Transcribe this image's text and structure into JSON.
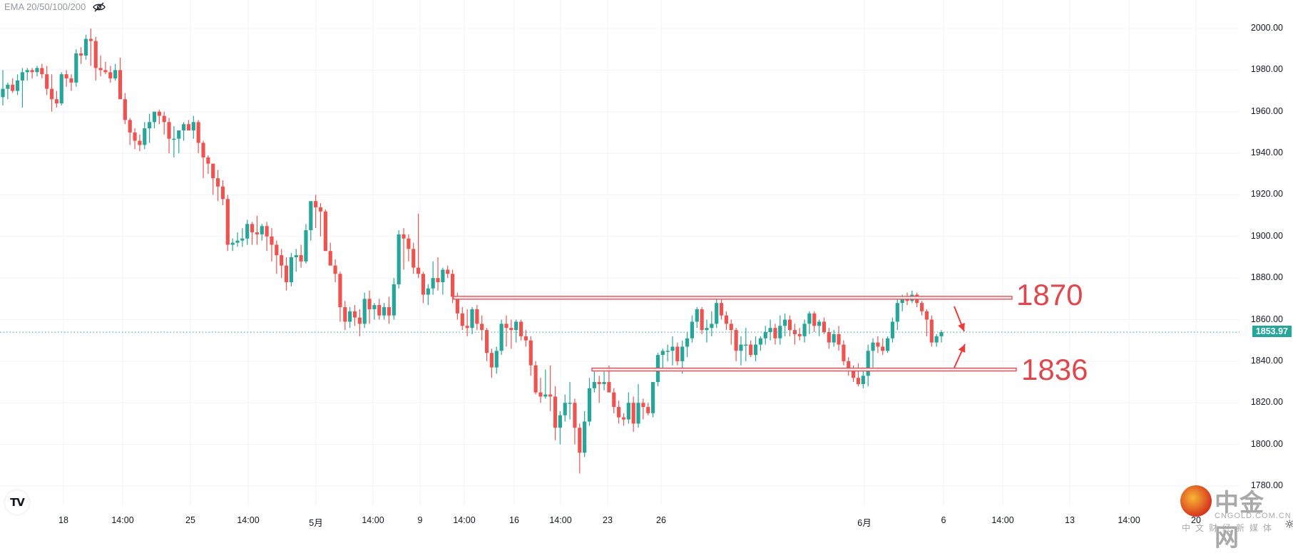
{
  "legend": {
    "indicator": "EMA 20/50/100/200",
    "visibility_icon": "eye-slash-icon"
  },
  "colors": {
    "up": "#26a69a",
    "down": "#ef5350",
    "annotation": "#e0474c",
    "grid": "#f0f3fa",
    "last_price_bg": "#26a69a"
  },
  "price_axis": {
    "labels": [
      "2000.00",
      "1980.00",
      "1960.00",
      "1940.00",
      "1920.00",
      "1900.00",
      "1880.00",
      "1860.00",
      "1840.00",
      "1820.00",
      "1800.00",
      "1780.00"
    ],
    "last_price": "1853.97"
  },
  "time_axis": {
    "labels": [
      "18",
      "14:00",
      "25",
      "14:00",
      "5月",
      "14:00",
      "9",
      "14:00",
      "16",
      "14:00",
      "23",
      "26",
      "6月",
      "6",
      "14:00",
      "13",
      "14:00",
      "20"
    ]
  },
  "annotations": {
    "resistance_label": "1870",
    "support_label": "1836"
  },
  "watermark": {
    "name": "中金网",
    "url": "CNGOLD.COM.CN",
    "tagline": "中文财经新媒体"
  },
  "logo": {
    "text": "TV"
  },
  "chart_data": {
    "type": "candlestick",
    "title": "",
    "indicator_legend": "EMA 20/50/100/200",
    "xlabel": "",
    "ylabel": "",
    "ylim": [
      1775,
      2005
    ],
    "y_ticks": [
      2000,
      1980,
      1960,
      1940,
      1920,
      1900,
      1880,
      1860,
      1840,
      1820,
      1800,
      1780
    ],
    "x_ticks": [
      "18",
      "14:00",
      "25",
      "14:00",
      "5月",
      "14:00",
      "9",
      "14:00",
      "16",
      "14:00",
      "23",
      "26",
      "6月",
      "6",
      "14:00",
      "13",
      "14:00",
      "20"
    ],
    "last_price": 1853.97,
    "horizontal_levels": [
      {
        "label": "1870",
        "price": 1870.5
      },
      {
        "label": "1836",
        "price": 1836
      }
    ],
    "candles": [
      [
        1967,
        1980,
        1963,
        1971
      ],
      [
        1971,
        1974,
        1966,
        1973
      ],
      [
        1973,
        1976,
        1969,
        1970
      ],
      [
        1970,
        1978,
        1968,
        1975
      ],
      [
        1975,
        1981,
        1962,
        1979
      ],
      [
        1979,
        1981,
        1975,
        1980
      ],
      [
        1980,
        1981,
        1976,
        1979
      ],
      [
        1979,
        1982,
        1977,
        1981
      ],
      [
        1981,
        1983,
        1976,
        1978
      ],
      [
        1978,
        1982,
        1968,
        1971
      ],
      [
        1971,
        1978,
        1960,
        1966
      ],
      [
        1966,
        1970,
        1962,
        1964
      ],
      [
        1964,
        1979,
        1963,
        1978
      ],
      [
        1978,
        1980,
        1972,
        1976
      ],
      [
        1976,
        1978,
        1970,
        1974
      ],
      [
        1974,
        1990,
        1972,
        1988
      ],
      [
        1988,
        1991,
        1983,
        1987
      ],
      [
        1987,
        1997,
        1985,
        1995
      ],
      [
        1995,
        2000,
        1982,
        1994
      ],
      [
        1994,
        1996,
        1975,
        1981
      ],
      [
        1981,
        1987,
        1977,
        1980
      ],
      [
        1980,
        1984,
        1978,
        1979
      ],
      [
        1979,
        1982,
        1974,
        1976
      ],
      [
        1976,
        1983,
        1975,
        1980
      ],
      [
        1980,
        1986,
        1967,
        1966
      ],
      [
        1966,
        1969,
        1954,
        1956
      ],
      [
        1956,
        1957,
        1944,
        1950
      ],
      [
        1950,
        1952,
        1942,
        1946
      ],
      [
        1946,
        1949,
        1941,
        1944
      ],
      [
        1944,
        1955,
        1942,
        1952
      ],
      [
        1952,
        1959,
        1945,
        1955
      ],
      [
        1955,
        1958,
        1952,
        1960
      ],
      [
        1960,
        1961,
        1954,
        1958
      ],
      [
        1958,
        1960,
        1949,
        1955
      ],
      [
        1955,
        1957,
        1940,
        1947
      ],
      [
        1947,
        1953,
        1938,
        1947
      ],
      [
        1947,
        1951,
        1940,
        1951
      ],
      [
        1951,
        1955,
        1946,
        1954
      ],
      [
        1954,
        1956,
        1951,
        1951
      ],
      [
        1951,
        1958,
        1947,
        1955
      ],
      [
        1955,
        1956,
        1940,
        1945
      ],
      [
        1945,
        1946,
        1928,
        1938
      ],
      [
        1938,
        1939,
        1930,
        1935
      ],
      [
        1935,
        1935,
        1920,
        1928
      ],
      [
        1928,
        1932,
        1917,
        1924
      ],
      [
        1924,
        1927,
        1915,
        1918
      ],
      [
        1918,
        1920,
        1893,
        1896
      ],
      [
        1896,
        1899,
        1893,
        1897
      ],
      [
        1897,
        1902,
        1895,
        1898
      ],
      [
        1898,
        1904,
        1895,
        1899
      ],
      [
        1899,
        1908,
        1896,
        1906
      ],
      [
        1906,
        1907,
        1896,
        1902
      ],
      [
        1902,
        1910,
        1896,
        1901
      ],
      [
        1901,
        1906,
        1898,
        1905
      ],
      [
        1905,
        1907,
        1893,
        1900
      ],
      [
        1900,
        1904,
        1888,
        1896
      ],
      [
        1896,
        1898,
        1882,
        1891
      ],
      [
        1891,
        1894,
        1880,
        1886
      ],
      [
        1886,
        1890,
        1874,
        1878
      ],
      [
        1878,
        1892,
        1876,
        1890
      ],
      [
        1890,
        1894,
        1883,
        1891
      ],
      [
        1891,
        1896,
        1885,
        1888
      ],
      [
        1888,
        1906,
        1887,
        1903
      ],
      [
        1903,
        1912,
        1898,
        1917
      ],
      [
        1917,
        1920,
        1904,
        1914
      ],
      [
        1914,
        1916,
        1900,
        1912
      ],
      [
        1912,
        1913,
        1893,
        1893
      ],
      [
        1893,
        1897,
        1889,
        1886
      ],
      [
        1886,
        1889,
        1878,
        1882
      ],
      [
        1882,
        1883,
        1859,
        1866
      ],
      [
        1866,
        1869,
        1855,
        1859
      ],
      [
        1859,
        1866,
        1856,
        1864
      ],
      [
        1864,
        1867,
        1857,
        1861
      ],
      [
        1861,
        1865,
        1852,
        1858
      ],
      [
        1858,
        1873,
        1856,
        1870
      ],
      [
        1870,
        1874,
        1858,
        1865
      ],
      [
        1865,
        1868,
        1860,
        1867
      ],
      [
        1867,
        1870,
        1860,
        1862
      ],
      [
        1862,
        1868,
        1860,
        1866
      ],
      [
        1866,
        1871,
        1858,
        1862
      ],
      [
        1862,
        1880,
        1860,
        1877
      ],
      [
        1877,
        1903,
        1875,
        1901
      ],
      [
        1901,
        1904,
        1884,
        1899
      ],
      [
        1899,
        1901,
        1888,
        1894
      ],
      [
        1894,
        1897,
        1882,
        1885
      ],
      [
        1885,
        1911,
        1880,
        1882
      ],
      [
        1882,
        1883,
        1868,
        1872
      ],
      [
        1872,
        1877,
        1867,
        1875
      ],
      [
        1875,
        1888,
        1872,
        1880
      ],
      [
        1880,
        1890,
        1874,
        1878
      ],
      [
        1878,
        1885,
        1872,
        1884
      ],
      [
        1884,
        1886,
        1880,
        1882
      ],
      [
        1882,
        1884,
        1868,
        1871
      ],
      [
        1871,
        1873,
        1860,
        1863
      ],
      [
        1863,
        1866,
        1855,
        1857
      ],
      [
        1857,
        1865,
        1852,
        1856
      ],
      [
        1856,
        1866,
        1853,
        1865
      ],
      [
        1865,
        1867,
        1855,
        1858
      ],
      [
        1858,
        1862,
        1850,
        1855
      ],
      [
        1855,
        1856,
        1840,
        1844
      ],
      [
        1844,
        1846,
        1832,
        1837
      ],
      [
        1837,
        1847,
        1834,
        1845
      ],
      [
        1845,
        1860,
        1843,
        1858
      ],
      [
        1858,
        1862,
        1847,
        1856
      ],
      [
        1856,
        1860,
        1846,
        1855
      ],
      [
        1855,
        1860,
        1849,
        1859
      ],
      [
        1859,
        1860,
        1850,
        1852
      ],
      [
        1852,
        1855,
        1847,
        1850
      ],
      [
        1850,
        1852,
        1833,
        1838
      ],
      [
        1838,
        1840,
        1824,
        1825
      ],
      [
        1825,
        1832,
        1820,
        1823
      ],
      [
        1823,
        1836,
        1822,
        1824
      ],
      [
        1824,
        1838,
        1816,
        1823
      ],
      [
        1823,
        1828,
        1802,
        1808
      ],
      [
        1808,
        1816,
        1800,
        1814
      ],
      [
        1814,
        1824,
        1811,
        1820
      ],
      [
        1820,
        1830,
        1812,
        1820
      ],
      [
        1820,
        1822,
        1800,
        1808
      ],
      [
        1808,
        1810,
        1786,
        1796
      ],
      [
        1796,
        1816,
        1794,
        1811
      ],
      [
        1811,
        1832,
        1809,
        1827
      ],
      [
        1827,
        1835,
        1825,
        1830
      ],
      [
        1830,
        1833,
        1820,
        1829
      ],
      [
        1829,
        1835,
        1826,
        1830
      ],
      [
        1830,
        1838,
        1826,
        1825
      ],
      [
        1825,
        1827,
        1815,
        1818
      ],
      [
        1818,
        1821,
        1810,
        1813
      ],
      [
        1813,
        1815,
        1809,
        1812
      ],
      [
        1812,
        1825,
        1810,
        1820
      ],
      [
        1820,
        1823,
        1806,
        1810
      ],
      [
        1810,
        1829,
        1808,
        1820
      ],
      [
        1820,
        1822,
        1812,
        1818
      ],
      [
        1818,
        1820,
        1814,
        1815
      ],
      [
        1815,
        1826,
        1813,
        1830
      ],
      [
        1830,
        1844,
        1828,
        1843
      ],
      [
        1843,
        1846,
        1835,
        1845
      ],
      [
        1845,
        1848,
        1840,
        1845
      ],
      [
        1845,
        1852,
        1838,
        1847
      ],
      [
        1847,
        1849,
        1838,
        1840
      ],
      [
        1840,
        1850,
        1834,
        1847
      ],
      [
        1847,
        1854,
        1842,
        1851
      ],
      [
        1851,
        1862,
        1849,
        1859
      ],
      [
        1859,
        1866,
        1856,
        1865
      ],
      [
        1865,
        1866,
        1853,
        1855
      ],
      [
        1855,
        1860,
        1849,
        1856
      ],
      [
        1856,
        1864,
        1852,
        1858
      ],
      [
        1858,
        1870,
        1856,
        1868
      ],
      [
        1868,
        1870,
        1860,
        1862
      ],
      [
        1862,
        1864,
        1855,
        1858
      ],
      [
        1858,
        1860,
        1848,
        1855
      ],
      [
        1855,
        1856,
        1840,
        1845
      ],
      [
        1845,
        1852,
        1838,
        1848
      ],
      [
        1848,
        1856,
        1840,
        1848
      ],
      [
        1848,
        1850,
        1842,
        1843
      ],
      [
        1843,
        1852,
        1840,
        1848
      ],
      [
        1848,
        1852,
        1845,
        1851
      ],
      [
        1851,
        1857,
        1848,
        1854
      ],
      [
        1854,
        1860,
        1850,
        1856
      ],
      [
        1856,
        1858,
        1848,
        1851
      ],
      [
        1851,
        1862,
        1848,
        1857
      ],
      [
        1857,
        1863,
        1852,
        1860
      ],
      [
        1860,
        1862,
        1852,
        1855
      ],
      [
        1855,
        1858,
        1848,
        1853
      ],
      [
        1853,
        1856,
        1850,
        1852
      ],
      [
        1852,
        1860,
        1849,
        1858
      ],
      [
        1858,
        1864,
        1853,
        1863
      ],
      [
        1863,
        1864,
        1854,
        1857
      ],
      [
        1857,
        1860,
        1852,
        1859
      ],
      [
        1859,
        1861,
        1853,
        1854
      ],
      [
        1854,
        1856,
        1846,
        1849
      ],
      [
        1849,
        1855,
        1847,
        1853
      ],
      [
        1853,
        1857,
        1845,
        1848
      ],
      [
        1848,
        1850,
        1838,
        1840
      ],
      [
        1840,
        1842,
        1833,
        1836
      ],
      [
        1836,
        1838,
        1830,
        1832
      ],
      [
        1832,
        1839,
        1828,
        1829
      ],
      [
        1829,
        1837,
        1827,
        1833
      ],
      [
        1833,
        1848,
        1828,
        1845
      ],
      [
        1845,
        1851,
        1837,
        1849
      ],
      [
        1849,
        1852,
        1844,
        1847
      ],
      [
        1847,
        1851,
        1843,
        1845
      ],
      [
        1845,
        1852,
        1844,
        1851
      ],
      [
        1851,
        1861,
        1849,
        1859
      ],
      [
        1859,
        1871,
        1855,
        1868
      ],
      [
        1868,
        1872,
        1864,
        1870
      ],
      [
        1870,
        1873,
        1867,
        1869
      ],
      [
        1869,
        1874,
        1868,
        1872
      ],
      [
        1872,
        1873,
        1866,
        1868
      ],
      [
        1868,
        1869,
        1862,
        1864
      ],
      [
        1864,
        1865,
        1852,
        1860
      ],
      [
        1860,
        1862,
        1847,
        1849
      ],
      [
        1849,
        1853,
        1847,
        1852
      ],
      [
        1852,
        1855,
        1849,
        1854
      ]
    ]
  }
}
